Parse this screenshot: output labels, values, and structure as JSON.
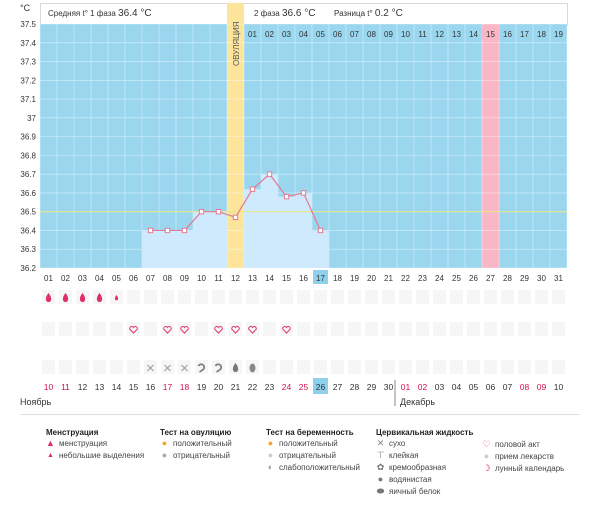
{
  "header": {
    "unit": "°C",
    "phase1_label": "Средняя t° 1 фаза",
    "phase1_value": "36.4 °C",
    "phase2_label": "2 фаза",
    "phase2_value": "36.6 °C",
    "diff_label": "Разница t°",
    "diff_value": "0.2 °C",
    "ovulation_label": "ОВУЛЯЦИЯ"
  },
  "colors": {
    "sky": "#9ad7ef",
    "pale_bar": "#cfeafc",
    "ovulation": "#fce59a",
    "highlight": "#f8b6c6",
    "line": "#e27a94",
    "coverline": "#e6e68a",
    "day_highlight": "#8fd0ec",
    "accent_red": "#d6104a"
  },
  "chart_data": {
    "type": "line",
    "ylim": [
      36.2,
      37.5
    ],
    "yticks": [
      "37.5",
      "37.4",
      "37.3",
      "37.2",
      "37.1",
      "37",
      "36.9",
      "36.8",
      "36.7",
      "36.6",
      "36.5",
      "36.4",
      "36.3",
      "36.2"
    ],
    "cycle_days": [
      "01",
      "02",
      "03",
      "04",
      "05",
      "06",
      "07",
      "08",
      "09",
      "10",
      "11",
      "12",
      "13",
      "14",
      "15",
      "16",
      "17",
      "18",
      "19",
      "20",
      "21",
      "22",
      "23",
      "24",
      "25",
      "26",
      "27",
      "28",
      "29",
      "30",
      "31"
    ],
    "post_ovulation_days": [
      "01",
      "02",
      "03",
      "04",
      "05",
      "06",
      "07",
      "08",
      "09",
      "10",
      "11",
      "12",
      "13",
      "14",
      "15",
      "16",
      "17",
      "18",
      "19"
    ],
    "highlight_post_day": "15",
    "highlight_cycle_day": "27",
    "current_cycle_day": "17",
    "ovulation_day": 12,
    "coverline": 36.5,
    "series": [
      {
        "points": [
          {
            "day": 7,
            "temp": 36.4
          },
          {
            "day": 8,
            "temp": 36.4
          },
          {
            "day": 9,
            "temp": 36.4
          },
          {
            "day": 10,
            "temp": 36.5
          },
          {
            "day": 11,
            "temp": 36.5
          },
          {
            "day": 12,
            "temp": 36.47
          },
          {
            "day": 13,
            "temp": 36.62
          },
          {
            "day": 14,
            "temp": 36.7
          },
          {
            "day": 15,
            "temp": 36.58
          },
          {
            "day": 16,
            "temp": 36.6
          },
          {
            "day": 17,
            "temp": 36.4
          }
        ]
      }
    ]
  },
  "symbols": {
    "menstruation": [
      {
        "day": 1,
        "kind": "heavy"
      },
      {
        "day": 2,
        "kind": "heavy"
      },
      {
        "day": 3,
        "kind": "heavy"
      },
      {
        "day": 4,
        "kind": "heavy"
      },
      {
        "day": 5,
        "kind": "light"
      }
    ],
    "intercourse_days": [
      6,
      8,
      9,
      11,
      12,
      13,
      15
    ],
    "mucus": [
      {
        "day": 7,
        "kind": "dry"
      },
      {
        "day": 8,
        "kind": "dry"
      },
      {
        "day": 9,
        "kind": "dry"
      },
      {
        "day": 10,
        "kind": "creamy"
      },
      {
        "day": 11,
        "kind": "creamy"
      },
      {
        "day": 12,
        "kind": "watery"
      },
      {
        "day": 13,
        "kind": "egg-white"
      }
    ]
  },
  "calendar": {
    "dates": [
      {
        "d": "10",
        "red": true
      },
      {
        "d": "11",
        "red": true
      },
      {
        "d": "12"
      },
      {
        "d": "13"
      },
      {
        "d": "14"
      },
      {
        "d": "15"
      },
      {
        "d": "16"
      },
      {
        "d": "17",
        "red": true
      },
      {
        "d": "18",
        "red": true
      },
      {
        "d": "19"
      },
      {
        "d": "20"
      },
      {
        "d": "21"
      },
      {
        "d": "22"
      },
      {
        "d": "23"
      },
      {
        "d": "24",
        "red": true
      },
      {
        "d": "25",
        "red": true
      },
      {
        "d": "26",
        "current": true
      },
      {
        "d": "27"
      },
      {
        "d": "28"
      },
      {
        "d": "29"
      },
      {
        "d": "30"
      },
      {
        "d": "01",
        "red": true
      },
      {
        "d": "02",
        "red": true
      },
      {
        "d": "03"
      },
      {
        "d": "04"
      },
      {
        "d": "05"
      },
      {
        "d": "06"
      },
      {
        "d": "07"
      },
      {
        "d": "08",
        "red": true
      },
      {
        "d": "09",
        "red": true
      },
      {
        "d": "10"
      }
    ],
    "month_start": "Ноябрь",
    "month_next": "Декабрь",
    "month_next_index": 21
  },
  "legend": {
    "menstruation": {
      "title": "Менструация",
      "items": [
        "менструация",
        "небольшие выделения"
      ]
    },
    "ovulation_test": {
      "title": "Тест на овуляцию",
      "items": [
        "положительный",
        "отрицательный"
      ]
    },
    "pregnancy_test": {
      "title": "Тест на беременность",
      "items": [
        "положительный",
        "отрицательный",
        "слабоположительный"
      ]
    },
    "cervical": {
      "title": "Цервикальная жидкость",
      "items": [
        "сухо",
        "клейкая",
        "кремообразная",
        "водянистая",
        "яичный белок"
      ]
    },
    "other": {
      "items": [
        "половой акт",
        "прием лекарств",
        "лунный календарь"
      ]
    }
  }
}
